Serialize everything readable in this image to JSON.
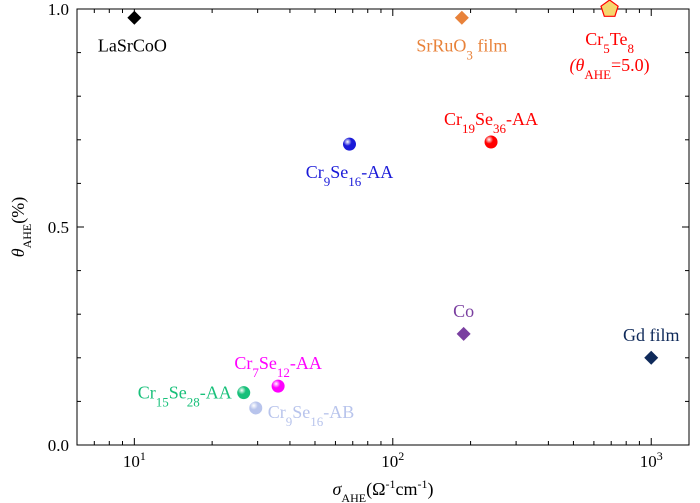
{
  "chart_data": {
    "type": "scatter",
    "title": "",
    "x_scale": "log",
    "xlim": [
      6,
      1400
    ],
    "ylim": [
      0,
      1.0
    ],
    "xlabel": {
      "main": "σ",
      "sub": "AHE",
      "rest": "(Ω",
      "sup1": "-1",
      "mid": "cm",
      "sup2": "-1",
      "end": ")"
    },
    "ylabel": {
      "main": "θ",
      "sub": "AHE",
      "rest": "(%)"
    },
    "x_ticks": [
      {
        "value": 10,
        "base": "10",
        "exp": "1"
      },
      {
        "value": 100,
        "base": "10",
        "exp": "2"
      },
      {
        "value": 1000,
        "base": "10",
        "exp": "3"
      }
    ],
    "y_ticks": [
      {
        "value": 0.0,
        "label": "0.0"
      },
      {
        "value": 0.5,
        "label": "0.5"
      },
      {
        "value": 1.0,
        "label": "1.0"
      }
    ],
    "points": [
      {
        "name": "LaSrCoO",
        "x": 10,
        "y": 0.98,
        "marker": "diamond",
        "color": "#000000",
        "label_pos": "below",
        "label": [
          {
            "t": "LaSrCoO"
          }
        ]
      },
      {
        "name": "SrRuO3 film",
        "x": 185,
        "y": 0.98,
        "marker": "diamond",
        "color": "#e8823a",
        "label_pos": "below",
        "label": [
          {
            "t": "SrRuO"
          },
          {
            "t": "3",
            "sub": true
          },
          {
            "t": " film"
          }
        ]
      },
      {
        "name": "Cr5Te8",
        "x": 690,
        "y": 1.0,
        "marker": "pentagon",
        "color": "#f5d76e",
        "stroke": "#ff0000",
        "label_pos": "below",
        "label": [
          {
            "t": "Cr"
          },
          {
            "t": "5",
            "sub": true
          },
          {
            "t": "Te"
          },
          {
            "t": "8",
            "sub": true
          }
        ],
        "label2": [
          {
            "t": "(θ",
            "italic": true
          },
          {
            "t": "AHE",
            "sub": true
          },
          {
            "t": "=5.0)"
          }
        ]
      },
      {
        "name": "Cr19Se36-AA",
        "x": 240,
        "y": 0.695,
        "marker": "ball",
        "color": "#ff0000",
        "label_pos": "above",
        "label": [
          {
            "t": "Cr"
          },
          {
            "t": "19",
            "sub": true
          },
          {
            "t": "Se"
          },
          {
            "t": "36",
            "sub": true
          },
          {
            "t": "-AA"
          }
        ]
      },
      {
        "name": "Cr9Se16-AA",
        "x": 68,
        "y": 0.69,
        "marker": "ball",
        "color": "#1a1ad8",
        "label_pos": "below",
        "label": [
          {
            "t": "Cr"
          },
          {
            "t": "9",
            "sub": true
          },
          {
            "t": "Se"
          },
          {
            "t": "16",
            "sub": true
          },
          {
            "t": "-AA"
          }
        ]
      },
      {
        "name": "Co",
        "x": 188,
        "y": 0.255,
        "marker": "diamond",
        "color": "#7a3fa0",
        "label_pos": "above",
        "label": [
          {
            "t": "Co"
          }
        ]
      },
      {
        "name": "Gd film",
        "x": 1000,
        "y": 0.2,
        "marker": "diamond",
        "color": "#0f2a5a",
        "label_pos": "above",
        "label": [
          {
            "t": "Gd film"
          }
        ]
      },
      {
        "name": "Cr7Se12-AA",
        "x": 36,
        "y": 0.135,
        "marker": "ball",
        "color": "#ff00ff",
        "label_pos": "above",
        "label": [
          {
            "t": "Cr"
          },
          {
            "t": "7",
            "sub": true
          },
          {
            "t": "Se"
          },
          {
            "t": "12",
            "sub": true
          },
          {
            "t": "-AA"
          }
        ]
      },
      {
        "name": "Cr15Se28-AA",
        "x": 26.5,
        "y": 0.12,
        "marker": "ball",
        "color": "#18c07a",
        "label_pos": "left",
        "label": [
          {
            "t": "Cr"
          },
          {
            "t": "15",
            "sub": true
          },
          {
            "t": "Se"
          },
          {
            "t": "28",
            "sub": true
          },
          {
            "t": "-AA"
          }
        ]
      },
      {
        "name": "Cr9Se16-AB",
        "x": 29.5,
        "y": 0.085,
        "marker": "ball",
        "color": "#b8c4ec",
        "label_pos": "right",
        "label": [
          {
            "t": "Cr"
          },
          {
            "t": "9",
            "sub": true
          },
          {
            "t": "Se"
          },
          {
            "t": "16",
            "sub": true
          },
          {
            "t": "-AB"
          }
        ]
      }
    ]
  }
}
